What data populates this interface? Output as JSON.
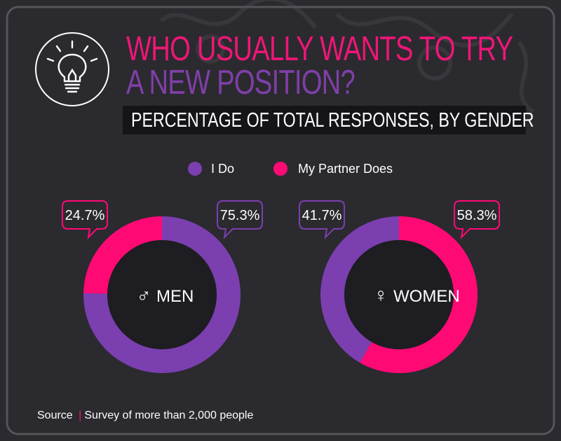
{
  "title": {
    "line1": "WHO USUALLY WANTS TO TRY",
    "line2": "A NEW POSITION?"
  },
  "subtitle": "PERCENTAGE OF TOTAL RESPONSES, BY GENDER",
  "icon": "lightbulb-icon",
  "colors": {
    "i_do": "#7b3fb0",
    "partner": "#ff0a75",
    "background": "#2b2a2f"
  },
  "legend": [
    {
      "label": "I Do",
      "color": "#7b3fb0"
    },
    {
      "label": "My Partner Does",
      "color": "#ff0a75"
    }
  ],
  "chart_data": [
    {
      "type": "pie",
      "variant": "donut",
      "label": "MEN",
      "symbol": "♂",
      "slices": [
        {
          "name": "I Do",
          "value": 75.3,
          "value_label": "75.3%"
        },
        {
          "name": "My Partner Does",
          "value": 24.7,
          "value_label": "24.7%"
        }
      ]
    },
    {
      "type": "pie",
      "variant": "donut",
      "label": "WOMEN",
      "symbol": "♀",
      "slices": [
        {
          "name": "I Do",
          "value": 41.7,
          "value_label": "41.7%"
        },
        {
          "name": "My Partner Does",
          "value": 58.3,
          "value_label": "58.3%"
        }
      ]
    }
  ],
  "source": {
    "label": "Source",
    "separator": "|",
    "text": "Survey of more than 2,000 people"
  }
}
